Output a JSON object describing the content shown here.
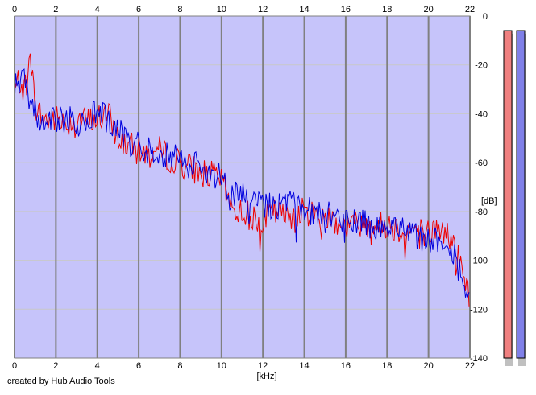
{
  "footer": {
    "credit": "created by Hub Audio Tools"
  },
  "colors": {
    "background": "#ffffff",
    "plot_fill": "#c6c4fa",
    "left_channel": "#ee0000",
    "right_channel": "#0000dd",
    "grid_major": "#808080",
    "grid_minor": "#c8c8c8",
    "meter_left": "#f08080",
    "meter_right": "#8080e8",
    "meter_shadow": "#c0c0c0"
  },
  "chart_data": {
    "type": "area",
    "title": "",
    "xlabel": "[kHz]",
    "ylabel": "[dB]",
    "xlim": [
      0,
      22
    ],
    "ylim": [
      -140,
      0
    ],
    "x_ticks": [
      "0",
      "2",
      "4",
      "6",
      "8",
      "10",
      "12",
      "14",
      "16",
      "18",
      "20",
      "22"
    ],
    "y_ticks": [
      "0",
      "-20",
      "-40",
      "-60",
      "-80",
      "-100",
      "-120",
      "-140"
    ],
    "grid": true,
    "x_tick_labels_top_and_bottom": true,
    "series": [
      {
        "color": "#ee0000",
        "x": [
          0,
          0.2,
          0.4,
          0.6,
          0.8,
          1,
          1.5,
          2,
          2.5,
          3,
          3.5,
          4,
          4.5,
          5,
          5.5,
          6,
          6.5,
          7,
          7.5,
          8,
          8.5,
          9,
          9.5,
          10,
          10.5,
          11,
          11.5,
          12,
          12.5,
          13,
          13.5,
          14,
          14.5,
          15,
          15.5,
          16,
          16.5,
          17,
          17.5,
          18,
          18.5,
          19,
          19.5,
          20,
          20.5,
          21,
          21.5,
          22
        ],
        "values": [
          -31,
          -26,
          -29,
          -27,
          -17,
          -38,
          -43,
          -42,
          -44,
          -42,
          -43,
          -42,
          -40,
          -50,
          -53,
          -55,
          -57,
          -55,
          -58,
          -60,
          -62,
          -64,
          -65,
          -67,
          -79,
          -80,
          -82,
          -84,
          -80,
          -82,
          -81,
          -80,
          -81,
          -82,
          -83,
          -86,
          -85,
          -84,
          -86,
          -85,
          -87,
          -88,
          -87,
          -89,
          -87,
          -90,
          -100,
          -116
        ]
      },
      {
        "color": "#0000dd",
        "x": [
          0,
          0.2,
          0.4,
          0.6,
          0.8,
          1,
          1.5,
          2,
          2.5,
          3,
          3.5,
          4,
          4.5,
          5,
          5.5,
          6,
          6.5,
          7,
          7.5,
          8,
          8.5,
          9,
          9.5,
          10,
          10.5,
          11,
          11.5,
          12,
          12.5,
          13,
          13.5,
          14,
          14.5,
          15,
          15.5,
          16,
          16.5,
          17,
          17.5,
          18,
          18.5,
          19,
          19.5,
          20,
          20.5,
          21,
          21.5,
          22
        ],
        "values": [
          -28,
          -27,
          -26,
          -29,
          -36,
          -40,
          -44,
          -41,
          -42,
          -44,
          -41,
          -40,
          -42,
          -46,
          -52,
          -53,
          -55,
          -56,
          -56,
          -58,
          -61,
          -62,
          -64,
          -66,
          -73,
          -74,
          -76,
          -77,
          -77,
          -78,
          -77,
          -79,
          -80,
          -81,
          -82,
          -84,
          -85,
          -85,
          -86,
          -88,
          -88,
          -89,
          -90,
          -92,
          -91,
          -93,
          -102,
          -118
        ]
      }
    ]
  },
  "level_meters": [
    {
      "channel": "left",
      "level": 1.0
    },
    {
      "channel": "right",
      "level": 1.0
    }
  ]
}
